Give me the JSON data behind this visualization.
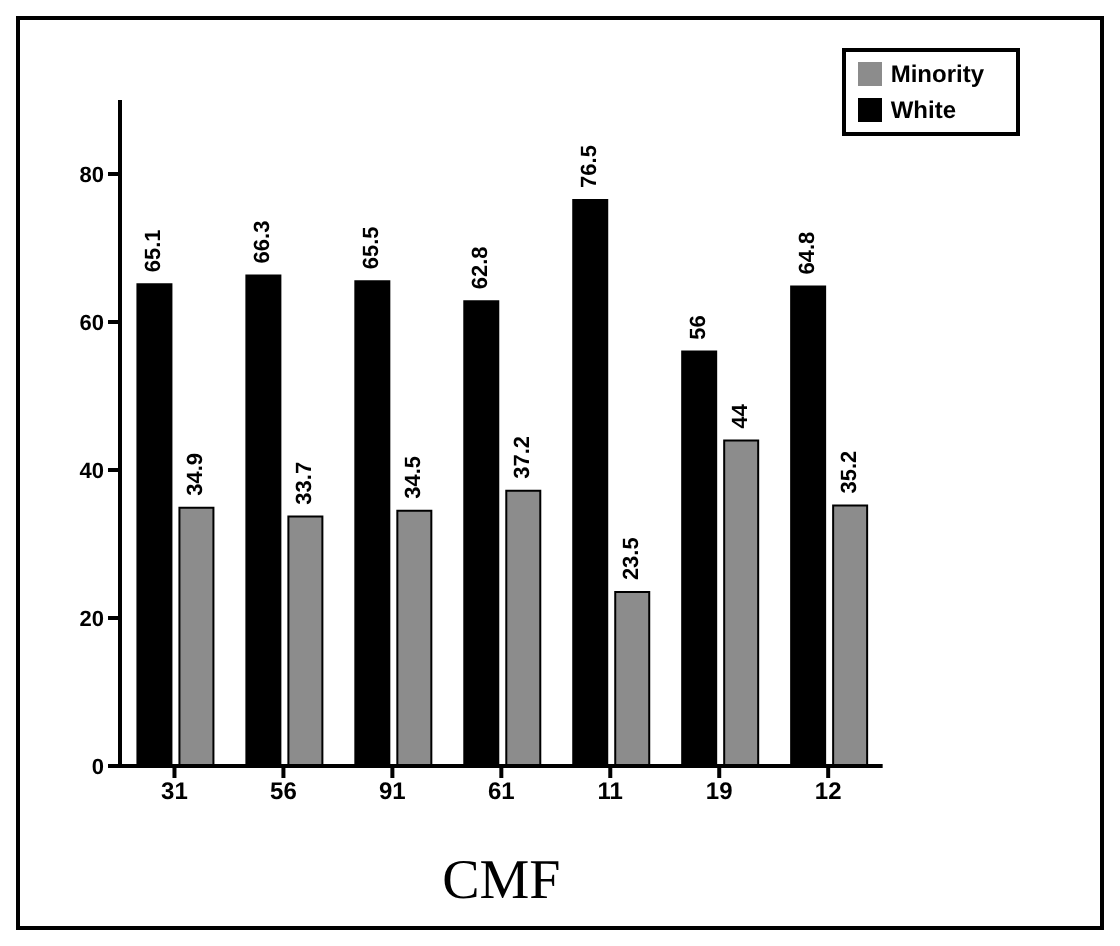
{
  "chart_data": {
    "type": "bar",
    "xlabel": "CMF",
    "categories": [
      "31",
      "56",
      "91",
      "61",
      "11",
      "19",
      "12"
    ],
    "series": [
      {
        "name": "White",
        "color": "#000000",
        "values": [
          65.1,
          66.3,
          65.5,
          62.8,
          76.5,
          56,
          64.8
        ]
      },
      {
        "name": "Minority",
        "color": "#8c8c8c",
        "values": [
          34.9,
          33.7,
          34.5,
          37.2,
          23.5,
          44,
          35.2
        ]
      }
    ],
    "ylim": [
      0,
      90
    ],
    "yticks": [
      0,
      20,
      40,
      60,
      80
    ],
    "grid": false,
    "legend": "top right",
    "data_labels": true
  }
}
